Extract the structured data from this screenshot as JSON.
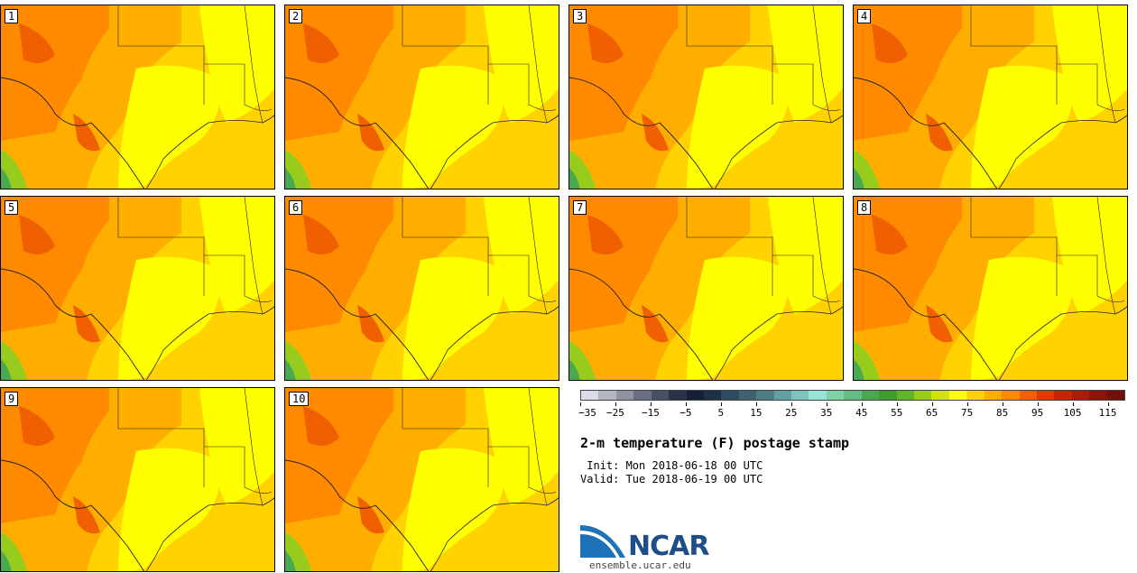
{
  "panels": [
    "1",
    "2",
    "3",
    "4",
    "5",
    "6",
    "7",
    "8",
    "9",
    "10"
  ],
  "colorbar": {
    "colors": [
      "#dcdce8",
      "#b4b6c2",
      "#8e92a2",
      "#6a6f82",
      "#4a5064",
      "#2a3248",
      "#14203a",
      "#1e3048",
      "#2e4a60",
      "#3e6270",
      "#4e7c82",
      "#64a0a2",
      "#7ec4be",
      "#96e4d8",
      "#80d0a8",
      "#64bc82",
      "#4aa850",
      "#3e9c2e",
      "#62b42a",
      "#98cc1c",
      "#d0e40c",
      "#ffff00",
      "#ffd200",
      "#ffae00",
      "#ff8a00",
      "#f06000",
      "#dc3c00",
      "#c22800",
      "#a81c0a",
      "#8c1408",
      "#701008"
    ],
    "tick_labels": [
      "−35",
      "−25",
      "−15",
      "−5",
      "5",
      "15",
      "25",
      "35",
      "45",
      "55",
      "65",
      "75",
      "85",
      "95",
      "105",
      "115"
    ]
  },
  "title": "2-m temperature (F) postage stamp",
  "init": " Init: Mon 2018-06-18 00 UTC",
  "valid": "Valid: Tue 2018-06-19 00 UTC",
  "logo": {
    "text": "NCAR",
    "url": "ensemble.ucar.edu"
  }
}
